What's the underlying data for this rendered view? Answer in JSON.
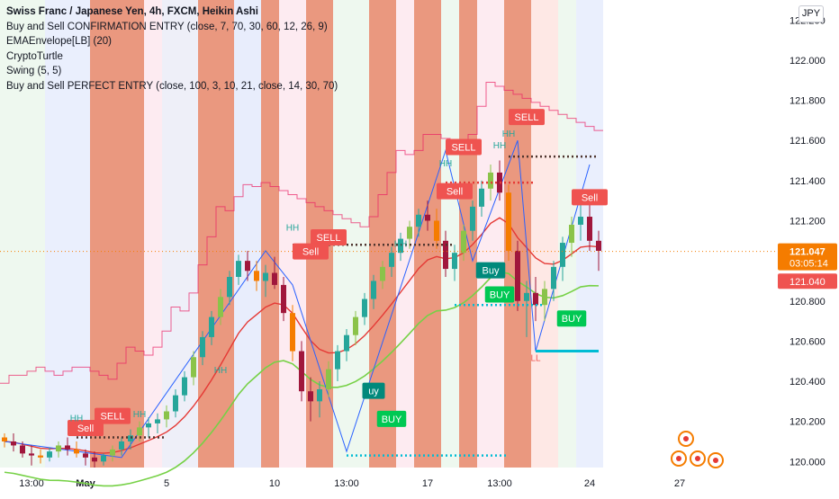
{
  "legend": {
    "title": "Swiss Franc / Japanese Yen, 4h, FXCM, Heikin Ashi",
    "indicators": [
      "Buy and Sell CONFIRMATION ENTRY (close, 7, 70, 30, 60, 12, 26, 9)",
      "EMAEnvelope[LB] (20)",
      "CryptoTurtle",
      "Swing (5, 5)",
      "Buy and Sell PERFECT ENTRY (close, 100, 3, 10, 21, close, 14, 30, 70)"
    ]
  },
  "currency": "JPY",
  "colors": {
    "bull": "#26a69a",
    "bear": "#a0173c",
    "bull_light": "#8bc34a",
    "bear_orange": "#f57c00",
    "sell_label": "#ef5350",
    "buy_label": "#00c853",
    "buy_teal": "#00897b",
    "ema_red": "#e53935",
    "ema_green": "#76d146",
    "swing_line": "#2962ff",
    "dotted_cyan": "#00bcd4",
    "price_line": "#f57c00"
  },
  "price_labels": {
    "last": "121.047",
    "countdown": "03:05:14",
    "other": "121.040"
  },
  "chart_data": {
    "type": "candlestick",
    "title": "Swiss Franc / Japanese Yen, 4h, FXCM, Heikin Ashi",
    "ylim": [
      119.97,
      122.3
    ],
    "y_ticks": [
      "122.200",
      "122.000",
      "121.800",
      "121.600",
      "121.400",
      "121.200",
      "121.000",
      "120.800",
      "120.600",
      "120.400",
      "120.200",
      "120.000"
    ],
    "y_tick_values": [
      122.2,
      122.0,
      121.8,
      121.6,
      121.4,
      121.2,
      121.0,
      120.8,
      120.6,
      120.4,
      120.2,
      120.0
    ],
    "x_ticks": [
      {
        "label": "13:00",
        "i": 3
      },
      {
        "label": "May",
        "i": 9
      },
      {
        "label": "5",
        "i": 18
      },
      {
        "label": "10",
        "i": 30
      },
      {
        "label": "13:00",
        "i": 38
      },
      {
        "label": "17",
        "i": 47
      },
      {
        "label": "13:00",
        "i": 55
      },
      {
        "label": "24",
        "i": 65
      },
      {
        "label": "27",
        "i": 75
      }
    ],
    "candles": [
      [
        120.12,
        120.14,
        120.07,
        120.1
      ],
      [
        120.1,
        120.14,
        120.05,
        120.08
      ],
      [
        120.08,
        120.1,
        120.02,
        120.04
      ],
      [
        120.04,
        120.08,
        119.98,
        120.03
      ],
      [
        120.03,
        120.06,
        119.99,
        120.02
      ],
      [
        120.02,
        120.07,
        120.0,
        120.05
      ],
      [
        120.05,
        120.1,
        120.02,
        120.08
      ],
      [
        120.08,
        120.12,
        120.03,
        120.06
      ],
      [
        120.06,
        120.1,
        120.02,
        120.04
      ],
      [
        120.04,
        120.06,
        119.98,
        120.02
      ],
      [
        120.02,
        120.05,
        119.97,
        120.0
      ],
      [
        120.0,
        120.04,
        119.98,
        120.03
      ],
      [
        120.03,
        120.08,
        120.0,
        120.06
      ],
      [
        120.06,
        120.12,
        120.03,
        120.1
      ],
      [
        120.1,
        120.16,
        120.06,
        120.13
      ],
      [
        120.13,
        120.2,
        120.1,
        120.17
      ],
      [
        120.17,
        120.22,
        120.12,
        120.19
      ],
      [
        120.19,
        120.24,
        120.14,
        120.21
      ],
      [
        120.21,
        120.28,
        120.17,
        120.25
      ],
      [
        120.25,
        120.36,
        120.22,
        120.33
      ],
      [
        120.33,
        120.45,
        120.3,
        120.42
      ],
      [
        120.42,
        120.55,
        120.38,
        120.52
      ],
      [
        120.52,
        120.65,
        120.48,
        120.62
      ],
      [
        120.62,
        120.75,
        120.58,
        120.72
      ],
      [
        120.72,
        120.86,
        120.68,
        120.82
      ],
      [
        120.82,
        120.95,
        120.78,
        120.92
      ],
      [
        120.92,
        121.03,
        120.88,
        121.0
      ],
      [
        121.0,
        121.05,
        120.9,
        120.95
      ],
      [
        120.95,
        121.0,
        120.85,
        120.9
      ],
      [
        120.9,
        120.98,
        120.82,
        120.94
      ],
      [
        120.94,
        121.02,
        120.86,
        120.88
      ],
      [
        120.88,
        120.92,
        120.7,
        120.74
      ],
      [
        120.74,
        120.78,
        120.5,
        120.55
      ],
      [
        120.55,
        120.6,
        120.3,
        120.35
      ],
      [
        120.35,
        120.42,
        120.2,
        120.3
      ],
      [
        120.3,
        120.4,
        120.22,
        120.36
      ],
      [
        120.36,
        120.5,
        120.32,
        120.46
      ],
      [
        120.46,
        120.58,
        120.4,
        120.55
      ],
      [
        120.55,
        120.66,
        120.5,
        120.63
      ],
      [
        120.63,
        120.75,
        120.58,
        120.72
      ],
      [
        120.72,
        120.84,
        120.68,
        120.81
      ],
      [
        120.81,
        120.93,
        120.76,
        120.9
      ],
      [
        120.9,
        121.0,
        120.86,
        120.97
      ],
      [
        120.97,
        121.07,
        120.92,
        121.04
      ],
      [
        121.04,
        121.14,
        121.0,
        121.11
      ],
      [
        121.11,
        121.2,
        121.06,
        121.17
      ],
      [
        121.17,
        121.26,
        121.12,
        121.23
      ],
      [
        121.23,
        121.3,
        121.15,
        121.2
      ],
      [
        121.2,
        121.26,
        121.06,
        121.1
      ],
      [
        121.1,
        121.15,
        120.92,
        120.96
      ],
      [
        120.96,
        121.08,
        120.9,
        121.04
      ],
      [
        121.04,
        121.18,
        121.0,
        121.15
      ],
      [
        121.15,
        121.3,
        121.1,
        121.27
      ],
      [
        121.27,
        121.4,
        121.22,
        121.36
      ],
      [
        121.36,
        121.48,
        121.3,
        121.44
      ],
      [
        121.44,
        121.5,
        121.3,
        121.34
      ],
      [
        121.34,
        121.38,
        121.0,
        121.05
      ],
      [
        121.05,
        121.1,
        120.75,
        120.8
      ],
      [
        120.8,
        120.9,
        120.62,
        120.84
      ],
      [
        120.84,
        120.92,
        120.7,
        120.78
      ],
      [
        120.78,
        120.9,
        120.7,
        120.86
      ],
      [
        120.86,
        121.0,
        120.8,
        120.97
      ],
      [
        120.97,
        121.12,
        120.9,
        121.09
      ],
      [
        121.09,
        121.22,
        121.02,
        121.18
      ],
      [
        121.18,
        121.28,
        121.1,
        121.22
      ],
      [
        121.22,
        121.3,
        121.05,
        121.1
      ],
      [
        121.1,
        121.15,
        120.95,
        121.05
      ]
    ],
    "series": [],
    "sell_labels": [
      "SELL",
      "SELL",
      "SELL",
      "SELL",
      "Sell",
      "Sell",
      "Sell",
      "Sell"
    ],
    "buy_labels": [
      "BUY",
      "BUY",
      "BUY",
      "Buy",
      "uy"
    ],
    "swing_labels": [
      "HH",
      "HH",
      "HH",
      "HH",
      "HH",
      "HH",
      "HH",
      "HH",
      "LL"
    ]
  }
}
